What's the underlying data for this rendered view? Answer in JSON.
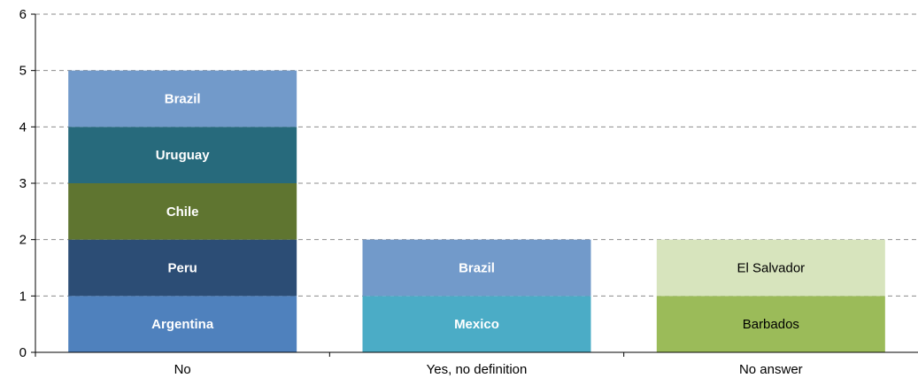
{
  "chart_data": {
    "type": "bar",
    "stacked": true,
    "title": "",
    "xlabel": "",
    "ylabel": "",
    "ylim": [
      0,
      6
    ],
    "yticks": [
      0,
      1,
      2,
      3,
      4,
      5,
      6
    ],
    "grid": "horizontal dashed",
    "legend": "none",
    "categories": [
      "No",
      "Yes, no definition",
      "No answer"
    ],
    "stacks": [
      {
        "category": "No",
        "segments": [
          {
            "label": "Argentina",
            "value": 1,
            "color": "#4F81BD",
            "text_color": "#FFFFFF",
            "bold": true
          },
          {
            "label": "Peru",
            "value": 1,
            "color": "#2C4D75",
            "text_color": "#FFFFFF",
            "bold": true
          },
          {
            "label": "Chile",
            "value": 1,
            "color": "#5F7530",
            "text_color": "#FFFFFF",
            "bold": true
          },
          {
            "label": "Uruguay",
            "value": 1,
            "color": "#276A7C",
            "text_color": "#FFFFFF",
            "bold": true
          },
          {
            "label": "Brazil",
            "value": 1,
            "color": "#729ACA",
            "text_color": "#FFFFFF",
            "bold": true
          }
        ]
      },
      {
        "category": "Yes, no definition",
        "segments": [
          {
            "label": "Mexico",
            "value": 1,
            "color": "#4BACC6",
            "text_color": "#FFFFFF",
            "bold": true
          },
          {
            "label": "Brazil",
            "value": 1,
            "color": "#729ACA",
            "text_color": "#FFFFFF",
            "bold": true
          }
        ]
      },
      {
        "category": "No answer",
        "segments": [
          {
            "label": "Barbados",
            "value": 1,
            "color": "#9BBB59",
            "text_color": "#000000",
            "bold": false
          },
          {
            "label": "El Salvador",
            "value": 1,
            "color": "#D7E4BD",
            "text_color": "#000000",
            "bold": false
          }
        ]
      }
    ]
  }
}
